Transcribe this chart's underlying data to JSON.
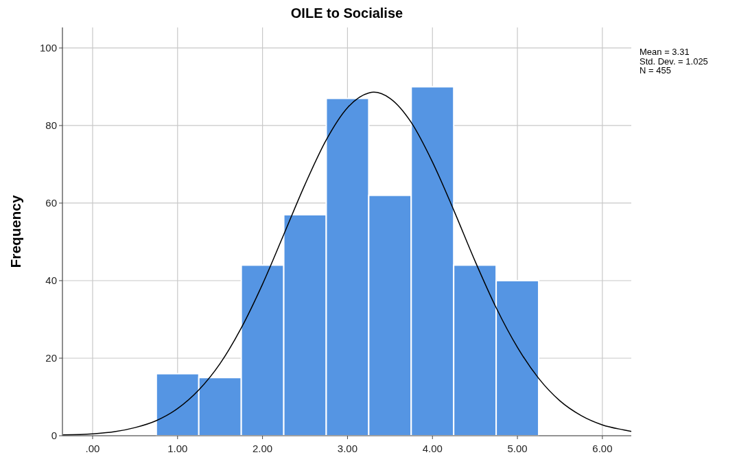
{
  "chart_data": {
    "type": "histogram",
    "title": "OILE to Socialise",
    "ylabel": "Frequency",
    "bins": [
      0.75,
      1.25,
      1.75,
      2.25,
      2.75,
      3.25,
      3.75,
      4.25,
      4.75,
      5.25
    ],
    "values": [
      16,
      15,
      44,
      57,
      87,
      62,
      90,
      44,
      40
    ],
    "color": "#5595e3",
    "series": [
      {
        "type": "line",
        "color": "#000000",
        "x": [
          -0.35,
          0,
          0.25,
          0.5,
          0.75,
          1,
          1.25,
          1.5,
          1.75,
          2,
          2.25,
          2.5,
          2.75,
          3,
          3.25,
          3.31,
          3.5,
          3.75,
          4,
          4.25,
          4.5,
          4.75,
          5,
          5.25,
          5.5,
          5.75,
          6,
          6.25,
          6.34
        ],
        "values": [
          0.2,
          0.5,
          1,
          2.1,
          3.9,
          7,
          11.8,
          18.6,
          27.8,
          39.1,
          51.9,
          64.8,
          76.3,
          84.6,
          88.4,
          88.6,
          87,
          80.8,
          70.6,
          58.2,
          45.1,
          33,
          22.8,
          14.8,
          9,
          5.2,
          2.8,
          1.5,
          1.1
        ]
      }
    ],
    "xlim": [
      -0.355,
      6.34
    ],
    "xticks": [
      {
        "value": 0,
        "label": ".00"
      },
      {
        "value": 1,
        "label": "1.00"
      },
      {
        "value": 2,
        "label": "2.00"
      },
      {
        "value": 3,
        "label": "3.00"
      },
      {
        "value": 4,
        "label": "4.00"
      },
      {
        "value": 5,
        "label": "5.00"
      },
      {
        "value": 6,
        "label": "6.00"
      }
    ],
    "ylim": [
      0,
      105.3
    ],
    "yticks": [
      0,
      20,
      40,
      60,
      80,
      100
    ],
    "grid": true,
    "annotations": [
      "Mean = 3.31",
      "Std. Dev. = 1.025",
      "N = 455"
    ]
  }
}
